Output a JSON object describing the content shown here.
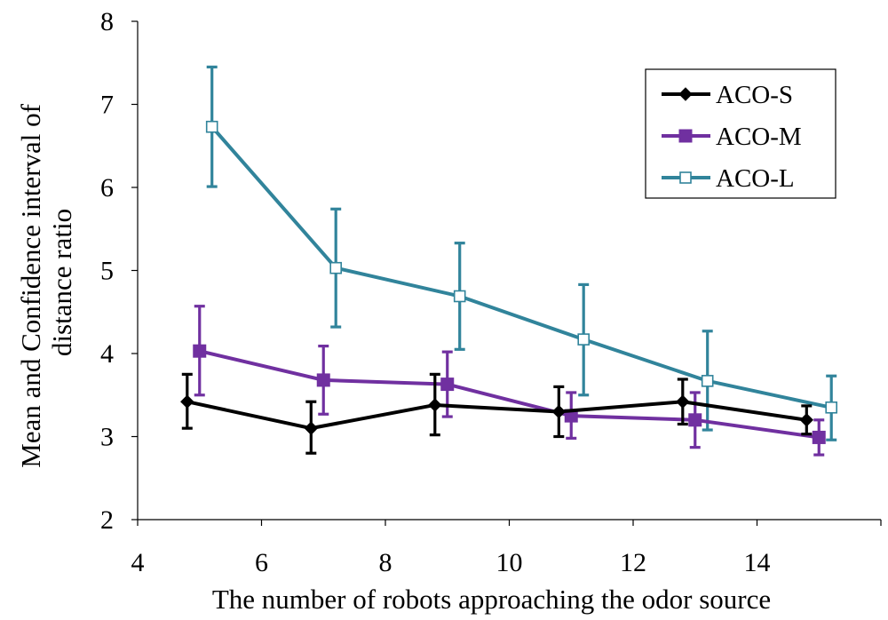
{
  "chart_data": {
    "type": "line",
    "title": "",
    "xlabel": "The number of robots approaching the odor source",
    "ylabel_lines": [
      "Mean and Confidence interval of",
      "distance ratio"
    ],
    "xlim": [
      4,
      16
    ],
    "ylim": [
      2,
      8
    ],
    "x_ticks": [
      4,
      6,
      8,
      10,
      12,
      14
    ],
    "y_ticks": [
      2,
      3,
      4,
      5,
      6,
      7,
      8
    ],
    "grid": false,
    "legend_position": "top-right",
    "series": [
      {
        "name": "ACO-S",
        "color": "#000000",
        "marker": "diamond-filled",
        "x": [
          4.8,
          6.8,
          8.8,
          10.8,
          12.8,
          14.8
        ],
        "y": [
          3.42,
          3.1,
          3.38,
          3.3,
          3.42,
          3.2
        ],
        "ci_low": [
          3.1,
          2.8,
          3.02,
          3.0,
          3.15,
          3.03
        ],
        "ci_high": [
          3.75,
          3.42,
          3.75,
          3.6,
          3.69,
          3.37
        ]
      },
      {
        "name": "ACO-M",
        "color": "#7030a0",
        "marker": "square-filled",
        "x": [
          5.0,
          7.0,
          9.0,
          11.0,
          13.0,
          15.0
        ],
        "y": [
          4.03,
          3.68,
          3.63,
          3.25,
          3.2,
          2.99
        ],
        "ci_low": [
          3.5,
          3.27,
          3.24,
          2.98,
          2.87,
          2.78
        ],
        "ci_high": [
          4.57,
          4.09,
          4.02,
          3.53,
          3.53,
          3.2
        ]
      },
      {
        "name": "ACO-L",
        "color": "#31849b",
        "marker": "square-open",
        "x": [
          5.2,
          7.2,
          9.2,
          11.2,
          13.2,
          15.2
        ],
        "y": [
          6.73,
          5.03,
          4.69,
          4.17,
          3.67,
          3.35
        ],
        "ci_low": [
          6.01,
          4.32,
          4.05,
          3.5,
          3.08,
          2.96
        ],
        "ci_high": [
          7.45,
          5.74,
          5.33,
          4.83,
          4.27,
          3.73
        ]
      }
    ]
  }
}
